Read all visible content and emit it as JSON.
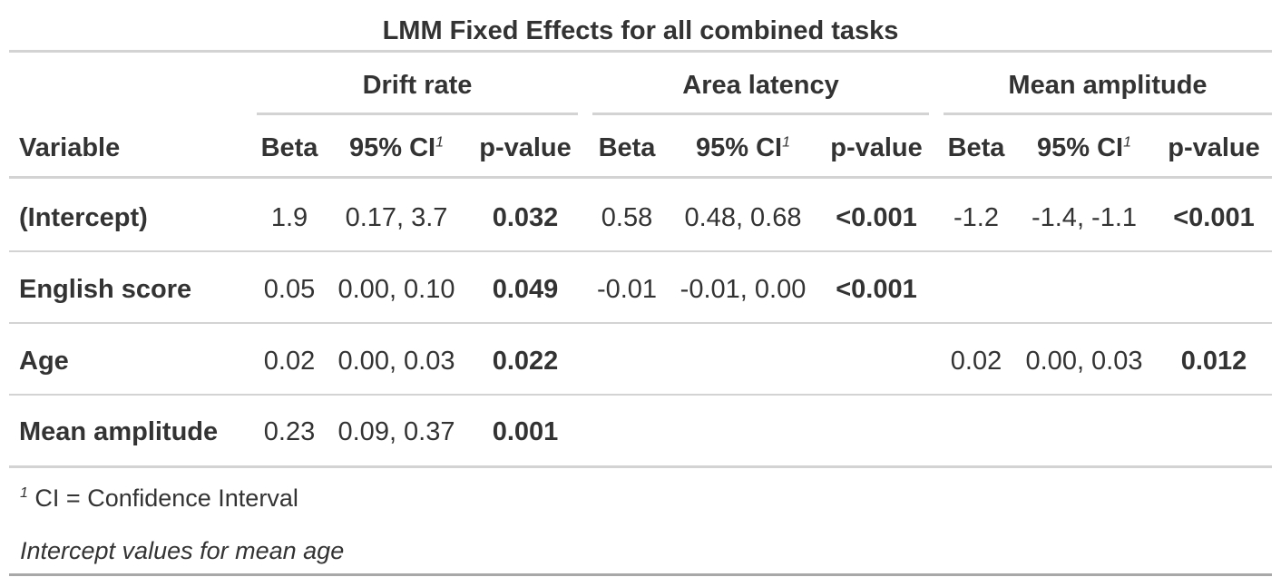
{
  "title": "LMM Fixed Effects for all combined tasks",
  "spanners": {
    "drift": "Drift rate",
    "area": "Area latency",
    "mean": "Mean amplitude"
  },
  "columns": {
    "variable": "Variable",
    "beta": "Beta",
    "ci": "95% CI",
    "ci_fn": "1",
    "pvalue": "p-value"
  },
  "rows": [
    {
      "variable": "(Intercept)",
      "drift": {
        "beta": "1.9",
        "ci": "0.17, 3.7",
        "p": "0.032"
      },
      "area": {
        "beta": "0.58",
        "ci": "0.48, 0.68",
        "p": "<0.001"
      },
      "mean": {
        "beta": "-1.2",
        "ci": "-1.4, -1.1",
        "p": "<0.001"
      }
    },
    {
      "variable": "English score",
      "drift": {
        "beta": "0.05",
        "ci": "0.00, 0.10",
        "p": "0.049"
      },
      "area": {
        "beta": "-0.01",
        "ci": "-0.01, 0.00",
        "p": "<0.001"
      },
      "mean": {
        "beta": "",
        "ci": "",
        "p": ""
      }
    },
    {
      "variable": "Age",
      "drift": {
        "beta": "0.02",
        "ci": "0.00, 0.03",
        "p": "0.022"
      },
      "area": {
        "beta": "",
        "ci": "",
        "p": ""
      },
      "mean": {
        "beta": "0.02",
        "ci": "0.00, 0.03",
        "p": "0.012"
      }
    },
    {
      "variable": "Mean amplitude",
      "drift": {
        "beta": "0.23",
        "ci": "0.09, 0.37",
        "p": "0.001"
      },
      "area": {
        "beta": "",
        "ci": "",
        "p": ""
      },
      "mean": {
        "beta": "",
        "ci": "",
        "p": ""
      }
    }
  ],
  "footnotes": {
    "ci_mark": "1",
    "ci_text": "CI = Confidence Interval",
    "source_note": "Intercept values for mean age"
  }
}
